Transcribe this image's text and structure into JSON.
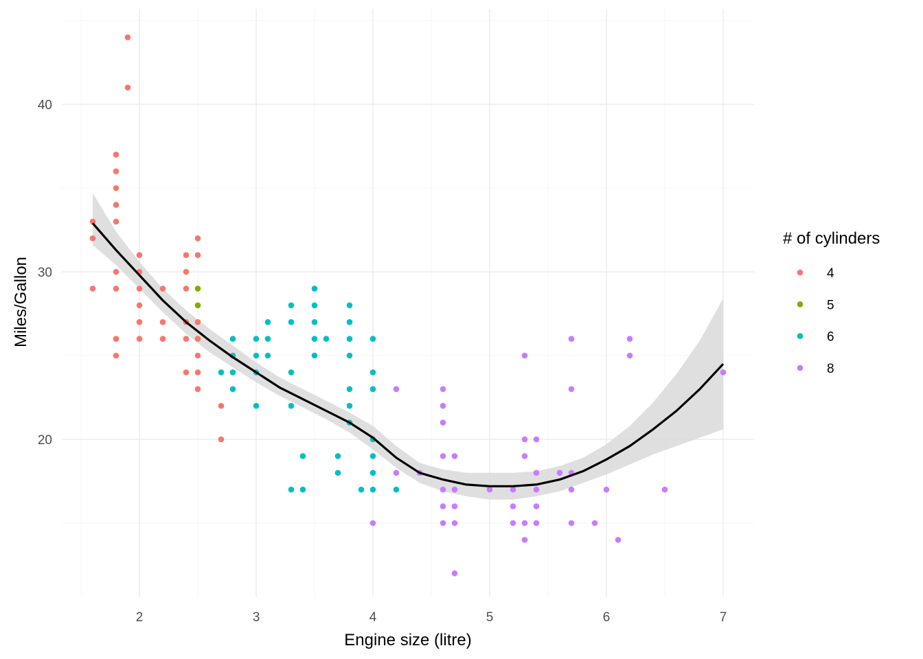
{
  "chart_data": {
    "type": "scatter",
    "xlabel": "Engine size (litre)",
    "ylabel": "Miles/Gallon",
    "xlim": [
      1.5,
      7.25
    ],
    "ylim": [
      10.8,
      45.2
    ],
    "x_ticks": [
      "2",
      "3",
      "4",
      "5",
      "6",
      "7"
    ],
    "y_ticks": [
      "20",
      "30",
      "40"
    ],
    "grid": true,
    "legend": {
      "title": "# of cylinders",
      "placement": "right",
      "entries": [
        "4",
        "5",
        "6",
        "8"
      ]
    },
    "colors": {
      "4": "#F8766D",
      "5": "#7CAE00",
      "6": "#00BFC4",
      "8": "#C77CFF",
      "smooth_line": "#000000",
      "ribbon": "#d9d9d9"
    },
    "series": [
      {
        "name": "4",
        "points": [
          [
            1.6,
            33
          ],
          [
            1.6,
            32
          ],
          [
            1.6,
            29
          ],
          [
            1.8,
            37
          ],
          [
            1.8,
            36
          ],
          [
            1.8,
            35
          ],
          [
            1.8,
            34
          ],
          [
            1.8,
            33
          ],
          [
            1.8,
            30
          ],
          [
            1.8,
            29
          ],
          [
            1.8,
            26
          ],
          [
            1.8,
            25
          ],
          [
            1.9,
            44
          ],
          [
            1.9,
            41
          ],
          [
            2,
            31
          ],
          [
            2,
            30
          ],
          [
            2,
            29
          ],
          [
            2,
            28
          ],
          [
            2,
            27
          ],
          [
            2,
            26
          ],
          [
            2.2,
            29
          ],
          [
            2.2,
            27
          ],
          [
            2.2,
            26
          ],
          [
            2.4,
            31
          ],
          [
            2.4,
            30
          ],
          [
            2.4,
            29
          ],
          [
            2.4,
            27
          ],
          [
            2.4,
            26
          ],
          [
            2.4,
            24
          ],
          [
            2.5,
            32
          ],
          [
            2.5,
            31
          ],
          [
            2.5,
            27
          ],
          [
            2.5,
            26
          ],
          [
            2.5,
            25
          ],
          [
            2.5,
            24
          ],
          [
            2.5,
            23
          ],
          [
            2.7,
            22
          ],
          [
            2.7,
            20
          ]
        ]
      },
      {
        "name": "5",
        "points": [
          [
            2.5,
            29
          ],
          [
            2.5,
            28
          ]
        ]
      },
      {
        "name": "6",
        "points": [
          [
            2.7,
            24
          ],
          [
            2.8,
            26
          ],
          [
            2.8,
            25
          ],
          [
            2.8,
            24
          ],
          [
            2.8,
            23
          ],
          [
            3,
            26
          ],
          [
            3,
            25
          ],
          [
            3,
            24
          ],
          [
            3,
            22
          ],
          [
            3.1,
            27
          ],
          [
            3.1,
            26
          ],
          [
            3.1,
            25
          ],
          [
            3.3,
            28
          ],
          [
            3.3,
            27
          ],
          [
            3.3,
            24
          ],
          [
            3.3,
            22
          ],
          [
            3.3,
            17
          ],
          [
            3.4,
            19
          ],
          [
            3.4,
            17
          ],
          [
            3.5,
            29
          ],
          [
            3.5,
            28
          ],
          [
            3.5,
            27
          ],
          [
            3.5,
            26
          ],
          [
            3.5,
            25
          ],
          [
            3.6,
            26
          ],
          [
            3.7,
            19
          ],
          [
            3.7,
            18
          ],
          [
            3.8,
            28
          ],
          [
            3.8,
            27
          ],
          [
            3.8,
            26
          ],
          [
            3.8,
            25
          ],
          [
            3.8,
            23
          ],
          [
            3.8,
            22
          ],
          [
            3.8,
            21
          ],
          [
            3.9,
            17
          ],
          [
            4,
            26
          ],
          [
            4,
            24
          ],
          [
            4,
            23
          ],
          [
            4,
            20
          ],
          [
            4,
            19
          ],
          [
            4,
            18
          ],
          [
            4,
            17
          ],
          [
            4.2,
            17
          ]
        ]
      },
      {
        "name": "8",
        "points": [
          [
            4,
            15
          ],
          [
            4.2,
            23
          ],
          [
            4.2,
            18
          ],
          [
            4.4,
            18
          ],
          [
            4.6,
            23
          ],
          [
            4.6,
            22
          ],
          [
            4.6,
            21
          ],
          [
            4.6,
            19
          ],
          [
            4.6,
            17
          ],
          [
            4.6,
            16
          ],
          [
            4.6,
            15
          ],
          [
            4.7,
            19
          ],
          [
            4.7,
            17
          ],
          [
            4.7,
            16
          ],
          [
            4.7,
            15
          ],
          [
            4.7,
            12
          ],
          [
            5,
            17
          ],
          [
            5.2,
            17
          ],
          [
            5.2,
            16
          ],
          [
            5.2,
            15
          ],
          [
            5.3,
            25
          ],
          [
            5.3,
            20
          ],
          [
            5.3,
            19
          ],
          [
            5.3,
            15
          ],
          [
            5.3,
            14
          ],
          [
            5.4,
            20
          ],
          [
            5.4,
            18
          ],
          [
            5.4,
            17
          ],
          [
            5.4,
            16
          ],
          [
            5.4,
            15
          ],
          [
            5.6,
            18
          ],
          [
            5.7,
            26
          ],
          [
            5.7,
            23
          ],
          [
            5.7,
            18
          ],
          [
            5.7,
            17
          ],
          [
            5.7,
            15
          ],
          [
            5.9,
            15
          ],
          [
            6,
            17
          ],
          [
            6.1,
            14
          ],
          [
            6.2,
            26
          ],
          [
            6.2,
            25
          ],
          [
            6.5,
            17
          ],
          [
            7,
            24
          ]
        ]
      }
    ],
    "smooth": {
      "x": [
        1.6,
        1.8,
        2.0,
        2.2,
        2.4,
        2.6,
        2.8,
        3.0,
        3.2,
        3.4,
        3.6,
        3.8,
        4.0,
        4.2,
        4.4,
        4.6,
        4.8,
        5.0,
        5.2,
        5.4,
        5.6,
        5.8,
        6.0,
        6.2,
        6.4,
        6.6,
        6.8,
        7.0
      ],
      "y": [
        32.9,
        31.3,
        29.8,
        28.3,
        27.0,
        25.9,
        24.9,
        24.0,
        23.1,
        22.4,
        21.7,
        21.0,
        20.1,
        18.9,
        18.0,
        17.6,
        17.3,
        17.2,
        17.2,
        17.3,
        17.6,
        18.1,
        18.8,
        19.6,
        20.6,
        21.7,
        23.0,
        24.5
      ],
      "ylow": [
        31.6,
        30.4,
        29.0,
        27.6,
        26.3,
        25.2,
        24.3,
        23.4,
        22.6,
        21.9,
        21.2,
        20.4,
        19.4,
        18.3,
        17.4,
        16.9,
        16.6,
        16.4,
        16.4,
        16.6,
        16.9,
        17.4,
        17.9,
        18.5,
        19.1,
        19.6,
        20.1,
        20.6
      ],
      "yhigh": [
        34.7,
        32.4,
        30.6,
        29.0,
        27.7,
        26.6,
        25.6,
        24.6,
        23.7,
        23.0,
        22.3,
        21.6,
        20.8,
        19.6,
        18.6,
        18.2,
        18.0,
        18.0,
        18.0,
        18.1,
        18.4,
        18.9,
        19.7,
        20.8,
        22.2,
        23.9,
        25.9,
        28.4
      ]
    }
  }
}
